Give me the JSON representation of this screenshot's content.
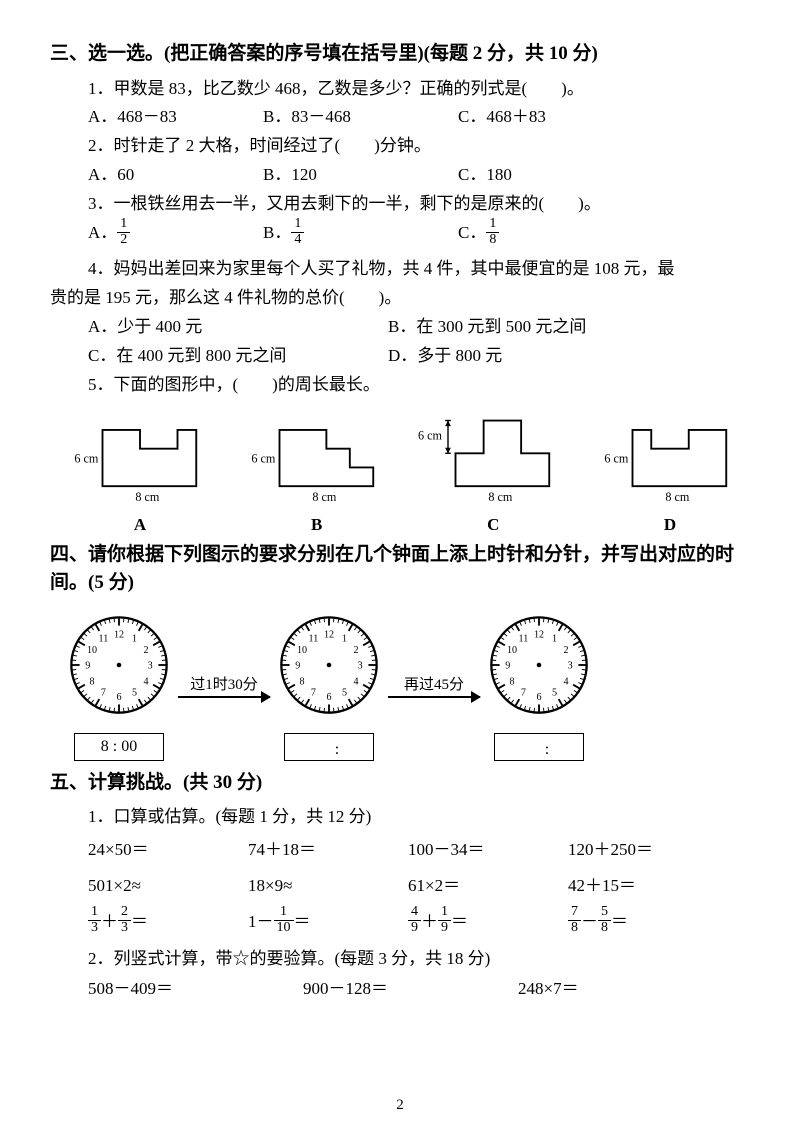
{
  "colors": {
    "text": "#000000",
    "bg": "#ffffff",
    "line": "#000000"
  },
  "pageNumber": "2",
  "section3": {
    "title": "三、选一选。(把正确答案的序号填在括号里)(每题 2 分，共 10 分)",
    "q1": {
      "text": "1．甲数是 83，比乙数少 468，乙数是多少？正确的列式是(　　)。",
      "A": "A．468－83",
      "B": "B．83－468",
      "C": "C．468＋83"
    },
    "q2": {
      "text": "2．时针走了 2 大格，时间经过了(　　)分钟。",
      "A": "A．60",
      "B": "B．120",
      "C": "C．180"
    },
    "q3": {
      "text": "3．一根铁丝用去一半，又用去剩下的一半，剩下的是原来的(　　)。",
      "A": "A．",
      "B": "B．",
      "C": "C．",
      "fracA": {
        "n": "1",
        "d": "2"
      },
      "fracB": {
        "n": "1",
        "d": "4"
      },
      "fracC": {
        "n": "1",
        "d": "8"
      }
    },
    "q4": {
      "line1": "4．妈妈出差回来为家里每个人买了礼物，共 4 件，其中最便宜的是 108 元，最",
      "line2": "贵的是 195 元，那么这 4 件礼物的总价(　　)。",
      "A": "A．少于 400 元",
      "B": "B．在 300 元到 500 元之间",
      "C": "C．在 400 元到 800 元之间",
      "D": "D．多于 800 元"
    },
    "q5": {
      "text": "5．下面的图形中，(　　)的周长最长。",
      "shapes": {
        "h_label": "6 cm",
        "w_label": "8 cm",
        "labels": {
          "A": "A",
          "B": "B",
          "C": "C",
          "D": "D"
        }
      }
    }
  },
  "section4": {
    "title": "四、请你根据下列图示的要求分别在几个钟面上添上时针和分针，并写出对应的时间。(5 分)",
    "arrow1": "过1时30分",
    "arrow2": "再过45分",
    "time1": "8 : 00",
    "time2": "　:　",
    "time3": "　:　",
    "clockNumbers": [
      "12",
      "1",
      "2",
      "3",
      "4",
      "5",
      "6",
      "7",
      "8",
      "9",
      "10",
      "11"
    ]
  },
  "section5": {
    "title": "五、计算挑战。(共 30 分)",
    "p1": {
      "title": "1．口算或估算。(每题 1 分，共 12 分)",
      "r1": [
        "24×50＝",
        "74＋18＝",
        "100－34＝",
        "120＋250＝"
      ],
      "r2": [
        "501×2≈",
        "18×9≈",
        "61×2＝",
        "42＋15＝"
      ],
      "r3": [
        {
          "a": {
            "n": "1",
            "d": "3"
          },
          "op": "＋",
          "b": {
            "n": "2",
            "d": "3"
          },
          "eq": "＝"
        },
        {
          "pre": "1－",
          "b": {
            "n": "1",
            "d": "10"
          },
          "eq": "＝"
        },
        {
          "a": {
            "n": "4",
            "d": "9"
          },
          "op": "＋",
          "b": {
            "n": "1",
            "d": "9"
          },
          "eq": "＝"
        },
        {
          "a": {
            "n": "7",
            "d": "8"
          },
          "op": "－",
          "b": {
            "n": "5",
            "d": "8"
          },
          "eq": "＝"
        }
      ]
    },
    "p2": {
      "title": "2．列竖式计算，带☆的要验算。(每题 3 分，共 18 分)",
      "items": [
        "508－409＝",
        "900－128＝",
        "248×7＝"
      ]
    }
  }
}
